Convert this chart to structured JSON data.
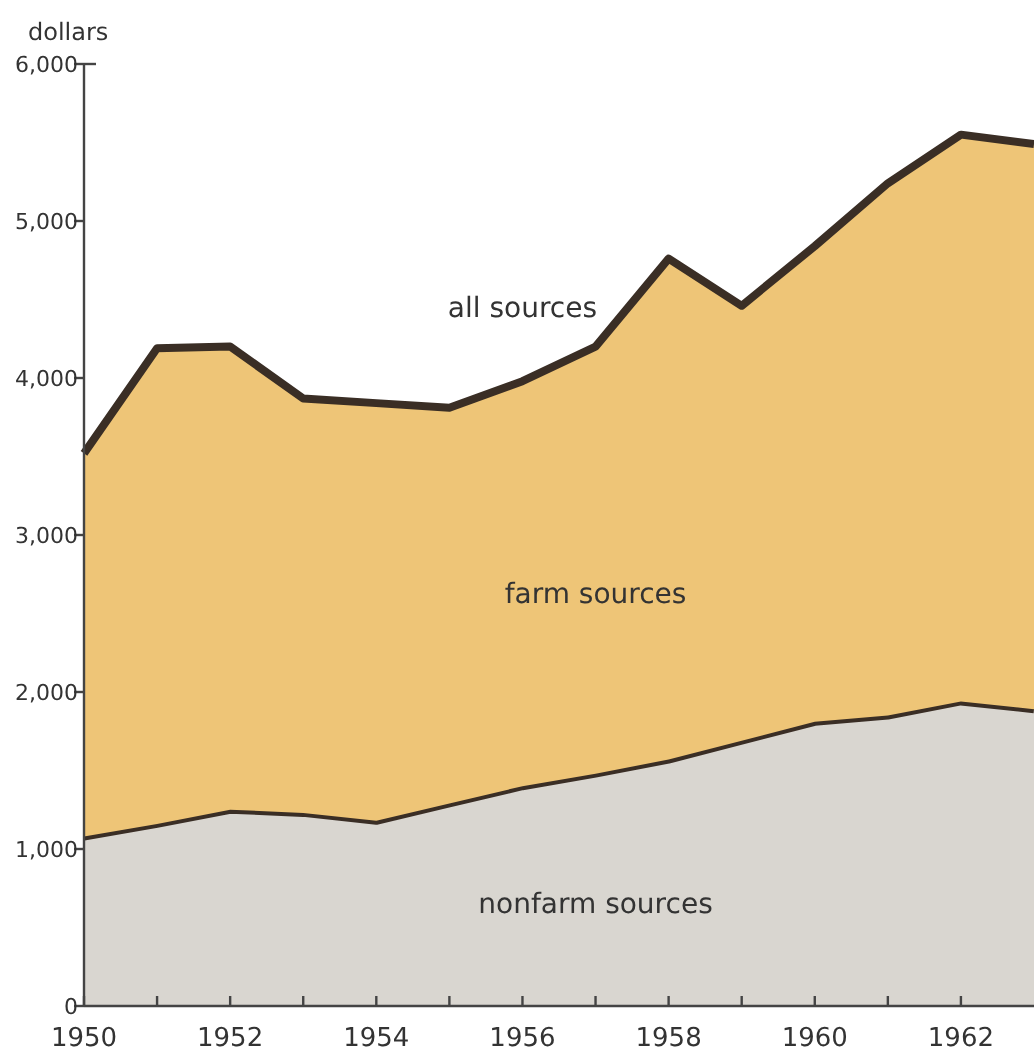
{
  "chart_data": {
    "type": "area",
    "stacked": true,
    "ylabel": "dollars",
    "x": [
      1950,
      1951,
      1952,
      1953,
      1954,
      1955,
      1956,
      1957,
      1958,
      1959,
      1960,
      1961,
      1962,
      1963
    ],
    "series": [
      {
        "name": "nonfarm sources",
        "color": "#d9d6d0",
        "values": [
          1080,
          1160,
          1250,
          1230,
          1180,
          1290,
          1400,
          1480,
          1570,
          1690,
          1810,
          1850,
          1940,
          1890
        ]
      },
      {
        "name": "farm sources",
        "color": "#eec577",
        "values": [
          2440,
          3030,
          2950,
          2640,
          2660,
          2520,
          2580,
          2720,
          3190,
          2770,
          3030,
          3390,
          3610,
          3600
        ]
      }
    ],
    "xlim": [
      1950,
      1963
    ],
    "xticks": [
      1950,
      {
        "value": 1951,
        "label": null
      },
      1952,
      {
        "value": 1953,
        "label": null
      },
      1954,
      {
        "value": 1955,
        "label": null
      },
      1956,
      {
        "value": 1957,
        "label": null
      },
      1958,
      {
        "value": 1959,
        "label": null
      },
      1960,
      {
        "value": 1961,
        "label": null
      },
      1962
    ],
    "ylim": [
      0,
      6000
    ],
    "yticks": [
      0,
      {
        "value": 1000,
        "label": "1,000"
      },
      {
        "value": 2000,
        "label": "2,000"
      },
      {
        "value": 3000,
        "label": "3,000"
      },
      {
        "value": 4000,
        "label": "4,000"
      },
      {
        "value": 5000,
        "label": "5,000"
      },
      {
        "value": 6000,
        "label": "6,000"
      }
    ],
    "annotations": [
      "all sources"
    ],
    "grid": false
  }
}
